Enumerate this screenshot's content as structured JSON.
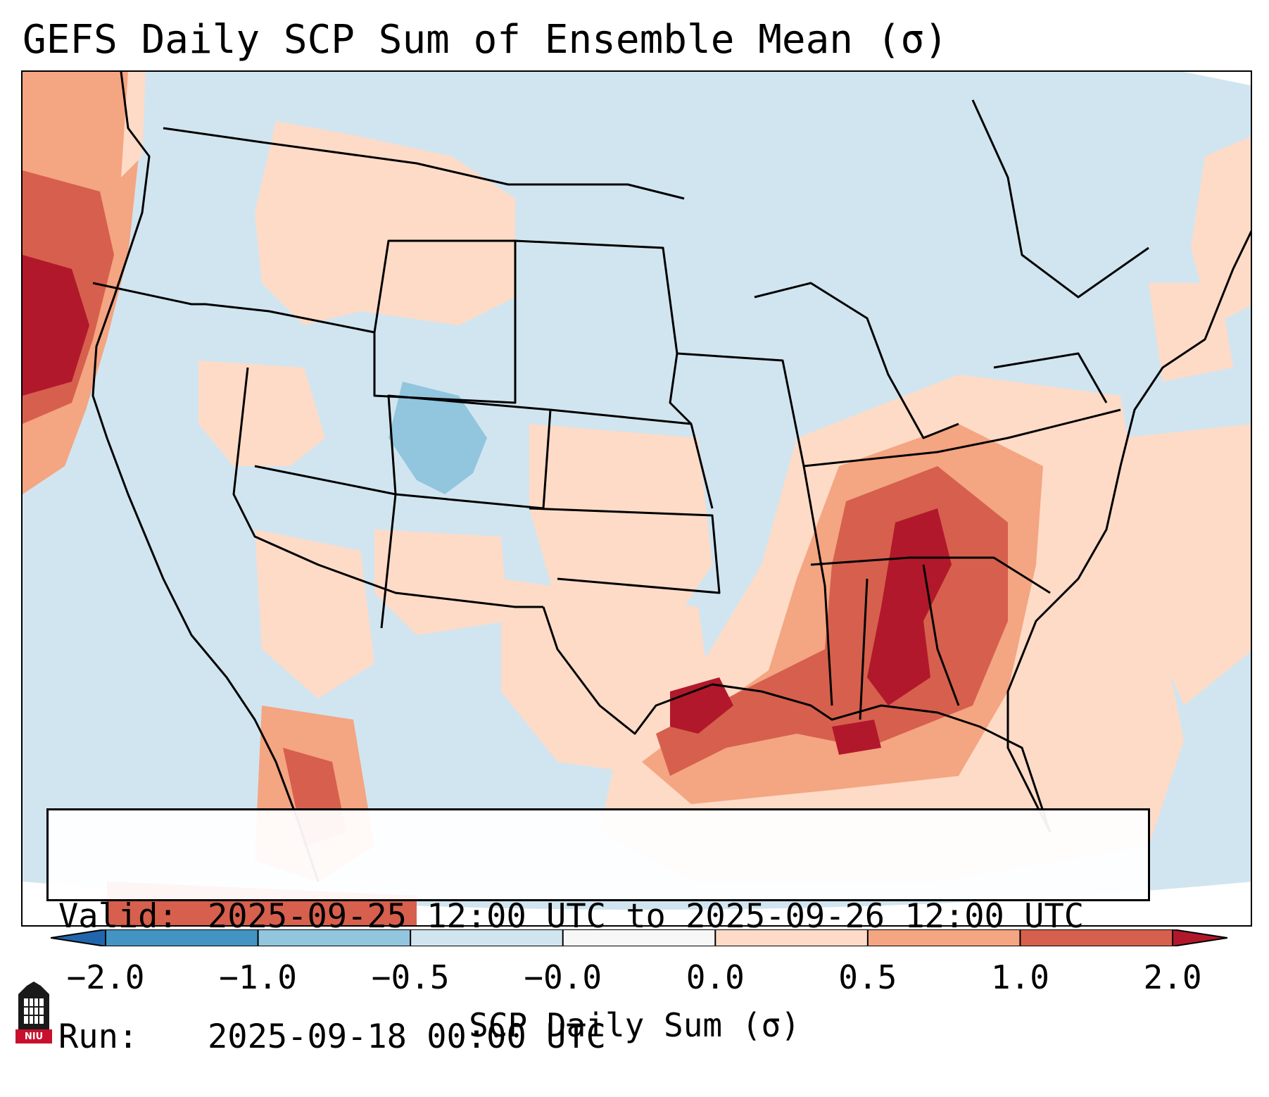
{
  "title": "GEFS Daily SCP Sum of Ensemble Mean (σ)",
  "info": {
    "valid_key": "Valid:",
    "valid_value": "2025-09-25 12:00 UTC to 2025-09-26 12:00 UTC",
    "run_key": "Run:",
    "run_value": "2025-09-18 00:00 UTC"
  },
  "colorbar": {
    "label": "SCP Daily Sum (σ)",
    "ticks": [
      "−2.0",
      "−1.0",
      "−0.5",
      "−0.0",
      "0.0",
      "0.5",
      "1.0",
      "2.0"
    ],
    "colors": {
      "under": "#2166ac",
      "bins": [
        "#4393c3",
        "#92c5de",
        "#d1e5f0",
        "#f7f7f7",
        "#fddbc7",
        "#f4a582",
        "#d6604d"
      ],
      "over": "#b2182b"
    }
  },
  "logo": {
    "text": "NIU",
    "color": "#c8102e"
  }
}
